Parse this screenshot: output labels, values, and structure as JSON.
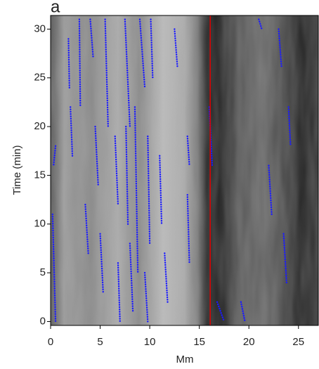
{
  "chart_data": {
    "type": "track-map",
    "panel_label": "a",
    "xlabel": "Mm",
    "ylabel": "Time (min)",
    "xlim": [
      0,
      27
    ],
    "ylim": [
      -0.4,
      31.4
    ],
    "xticks": [
      0,
      5,
      10,
      15,
      20,
      25
    ],
    "yticks": [
      0,
      5,
      10,
      15,
      20,
      25,
      30
    ],
    "marker_x": 16.1,
    "marker_color": "#e00000",
    "track_color": "#1a1aff",
    "tracks": [
      {
        "x": [
          2.9,
          3.0
        ],
        "y": [
          31,
          22
        ]
      },
      {
        "x": [
          1.8,
          1.9
        ],
        "y": [
          29,
          24
        ]
      },
      {
        "x": [
          0.2,
          0.5
        ],
        "y": [
          11,
          0
        ]
      },
      {
        "x": [
          4.0,
          4.3
        ],
        "y": [
          31,
          27
        ]
      },
      {
        "x": [
          5.5,
          5.8
        ],
        "y": [
          31,
          20
        ]
      },
      {
        "x": [
          7.5,
          8.0
        ],
        "y": [
          31,
          20
        ]
      },
      {
        "x": [
          9.0,
          9.5
        ],
        "y": [
          31,
          24
        ]
      },
      {
        "x": [
          10.1,
          10.3
        ],
        "y": [
          31,
          25
        ]
      },
      {
        "x": [
          12.5,
          12.8
        ],
        "y": [
          30,
          26
        ]
      },
      {
        "x": [
          2.0,
          2.2
        ],
        "y": [
          22,
          17
        ]
      },
      {
        "x": [
          4.5,
          4.8
        ],
        "y": [
          20,
          14
        ]
      },
      {
        "x": [
          6.5,
          6.8
        ],
        "y": [
          19,
          12
        ]
      },
      {
        "x": [
          7.6,
          7.8
        ],
        "y": [
          20,
          10
        ]
      },
      {
        "x": [
          8.5,
          8.8
        ],
        "y": [
          22,
          5
        ]
      },
      {
        "x": [
          9.8,
          10.0
        ],
        "y": [
          19,
          8
        ]
      },
      {
        "x": [
          11.0,
          11.2
        ],
        "y": [
          17,
          10
        ]
      },
      {
        "x": [
          13.8,
          14.0
        ],
        "y": [
          19,
          16
        ]
      },
      {
        "x": [
          3.5,
          3.8
        ],
        "y": [
          12,
          7
        ]
      },
      {
        "x": [
          5.0,
          5.3
        ],
        "y": [
          9,
          3
        ]
      },
      {
        "x": [
          6.8,
          7.0
        ],
        "y": [
          6,
          0
        ]
      },
      {
        "x": [
          8.0,
          8.3
        ],
        "y": [
          8,
          1
        ]
      },
      {
        "x": [
          9.5,
          9.8
        ],
        "y": [
          5,
          0
        ]
      },
      {
        "x": [
          11.5,
          11.8
        ],
        "y": [
          7,
          2
        ]
      },
      {
        "x": [
          13.8,
          14.0
        ],
        "y": [
          13,
          6
        ]
      },
      {
        "x": [
          16.0,
          16.3
        ],
        "y": [
          22,
          16
        ]
      },
      {
        "x": [
          16.8,
          17.5
        ],
        "y": [
          2,
          0
        ]
      },
      {
        "x": [
          19.2,
          19.6
        ],
        "y": [
          2,
          0
        ]
      },
      {
        "x": [
          22.0,
          22.3
        ],
        "y": [
          16,
          11
        ]
      },
      {
        "x": [
          23.0,
          23.3
        ],
        "y": [
          30,
          26
        ]
      },
      {
        "x": [
          23.5,
          23.8
        ],
        "y": [
          9,
          4
        ]
      },
      {
        "x": [
          24.0,
          24.2
        ],
        "y": [
          22,
          18
        ]
      },
      {
        "x": [
          0.5,
          0.3
        ],
        "y": [
          18,
          16
        ]
      },
      {
        "x": [
          21.0,
          21.3
        ],
        "y": [
          31,
          30
        ]
      }
    ]
  }
}
